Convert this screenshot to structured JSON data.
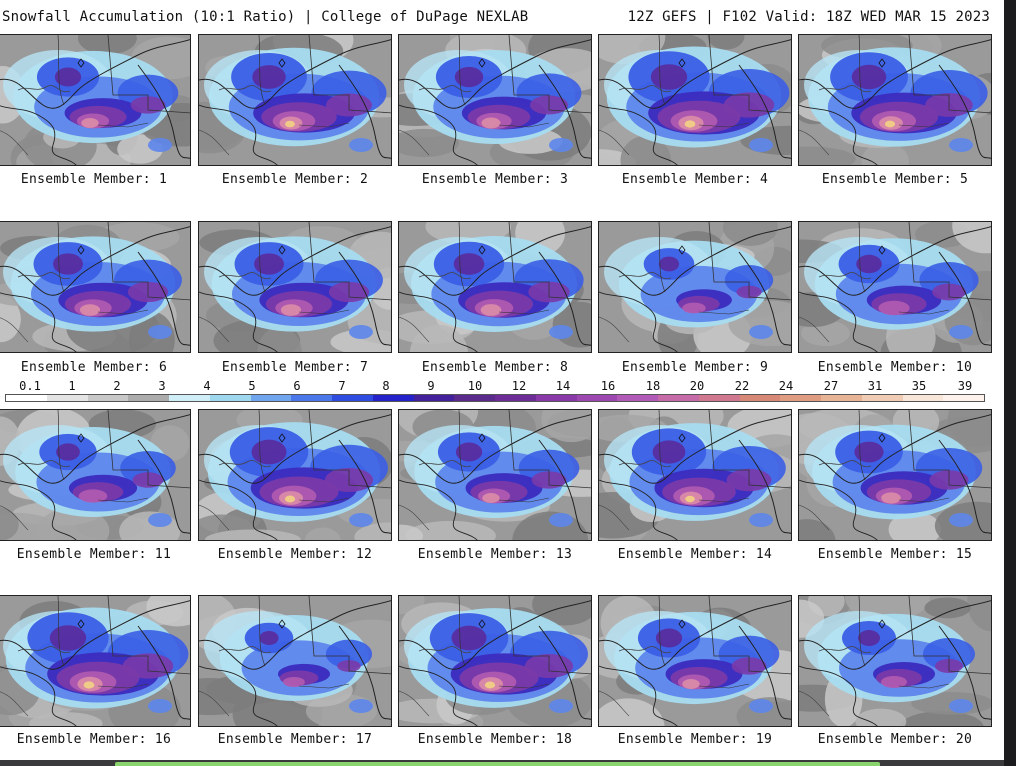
{
  "header": {
    "left_text": "Snowfall Accumulation (10:1 Ratio) | College of DuPage NEXLAB",
    "right_text": "12Z GEFS | F102 Valid: 18Z WED MAR 15 2023"
  },
  "colorbar": {
    "labels": [
      "0.1",
      "1",
      "2",
      "3",
      "4",
      "5",
      "6",
      "7",
      "8",
      "9",
      "10",
      "12",
      "14",
      "16",
      "18",
      "20",
      "22",
      "24",
      "27",
      "31",
      "35",
      "39"
    ],
    "colors": [
      "#ffffff",
      "#e4e4e4",
      "#c8c8c8",
      "#acacac",
      "#cfeef7",
      "#9ed8ee",
      "#6fa6ee",
      "#4a78ea",
      "#2e4de0",
      "#2422c8",
      "#43209c",
      "#5a2a8c",
      "#6c2e96",
      "#8a3aa8",
      "#9c48b0",
      "#b25ab8",
      "#c66aa8",
      "#d07890",
      "#d88876",
      "#e09c80",
      "#e8b496",
      "#f0ccb4",
      "#f8e6d8",
      "#fdf3ec"
    ]
  },
  "panels": [
    {
      "caption": "Ensemble Member: 1",
      "intensity": 0.62
    },
    {
      "caption": "Ensemble Member: 2",
      "intensity": 0.82
    },
    {
      "caption": "Ensemble Member: 3",
      "intensity": 0.68
    },
    {
      "caption": "Ensemble Member: 4",
      "intensity": 0.9
    },
    {
      "caption": "Ensemble Member: 5",
      "intensity": 0.85
    },
    {
      "caption": "Ensemble Member: 6",
      "intensity": 0.72
    },
    {
      "caption": "Ensemble Member: 7",
      "intensity": 0.72
    },
    {
      "caption": "Ensemble Member: 8",
      "intensity": 0.74
    },
    {
      "caption": "Ensemble Member: 9",
      "intensity": 0.45
    },
    {
      "caption": "Ensemble Member: 10",
      "intensity": 0.6
    },
    {
      "caption": "Ensemble Member: 11",
      "intensity": 0.55
    },
    {
      "caption": "Ensemble Member: 12",
      "intensity": 0.86
    },
    {
      "caption": "Ensemble Member: 13",
      "intensity": 0.62
    },
    {
      "caption": "Ensemble Member: 14",
      "intensity": 0.8
    },
    {
      "caption": "Ensemble Member: 15",
      "intensity": 0.7
    },
    {
      "caption": "Ensemble Member: 16",
      "intensity": 0.9
    },
    {
      "caption": "Ensemble Member: 17",
      "intensity": 0.42
    },
    {
      "caption": "Ensemble Member: 18",
      "intensity": 0.86
    },
    {
      "caption": "Ensemble Member: 19",
      "intensity": 0.62
    },
    {
      "caption": "Ensemble Member: 20",
      "intensity": 0.5
    }
  ]
}
